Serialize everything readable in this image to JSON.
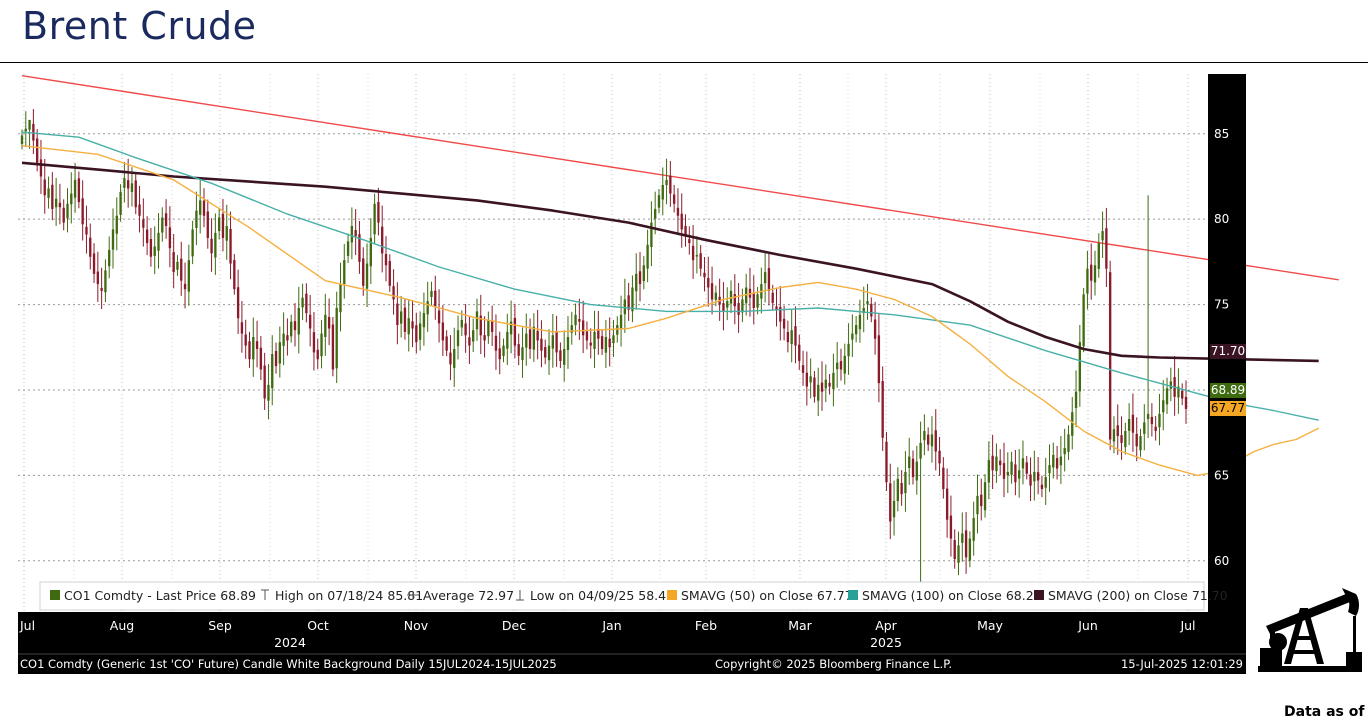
{
  "page": {
    "title": "Brent Crude",
    "data_as_of": "Data as of"
  },
  "chart_data": {
    "type": "line",
    "title": "Brent Crude",
    "ticker": "CO1 Comdty",
    "x_axis": {
      "months": [
        "Jul",
        "Aug",
        "Sep",
        "Oct",
        "Nov",
        "Dec",
        "Jan",
        "Feb",
        "Mar",
        "Apr",
        "May",
        "Jun",
        "Jul"
      ],
      "year_labels": [
        "2024",
        "2025"
      ]
    },
    "y_axis": {
      "ticks": [
        60,
        65,
        70,
        75,
        80,
        85
      ],
      "ylim": [
        57,
        88.5
      ],
      "position": "right"
    },
    "grid": true,
    "legend": {
      "position": "bottom",
      "items": [
        {
          "label": "CO1 Comdty - Last Price 68.89",
          "color": "#3f6b10",
          "symbol": "square"
        },
        {
          "label": "High on 07/18/24 85.81",
          "color": "#555555",
          "symbol": "high"
        },
        {
          "label": "Average 72.97",
          "color": "#555555",
          "symbol": "avg"
        },
        {
          "label": "Low on 04/09/25 58.40",
          "color": "#555555",
          "symbol": "low"
        },
        {
          "label": "SMAVG (50)  on Close 67.77",
          "color": "#f5a623",
          "symbol": "square"
        },
        {
          "label": "SMAVG (100)  on Close 68.23",
          "color": "#2aa198",
          "symbol": "square"
        },
        {
          "label": "SMAVG (200)  on Close 71.70",
          "color": "#3b1424",
          "symbol": "square"
        }
      ]
    },
    "price_labels": [
      {
        "text": "71.70",
        "value": 71.7,
        "bg": "#3b1424",
        "fg": "#ffffff"
      },
      {
        "text": "68.89",
        "value": 68.89,
        "bg": "#3f6b10",
        "fg": "#ffffff"
      },
      {
        "text": "67.77",
        "value": 67.77,
        "bg": "#f5a623",
        "fg": "#000000"
      }
    ],
    "footer": {
      "left": "CO1 Comdty (Generic 1st 'CO' Future) Candle White Background  Daily 15JUL2024-15JUL2025",
      "center": "Copyright© 2025 Bloomberg Finance L.P.",
      "right": "15-Jul-2025 12:01:29"
    },
    "colors": {
      "up": "#3f6b10",
      "down": "#8b1a2b",
      "trend": "#f04a4a",
      "sma50": "#f5b041",
      "sma100": "#48b0a8",
      "sma200": "#3b1424"
    },
    "candles_close": [
      84.9,
      85.3,
      85.81,
      84.6,
      83.3,
      82.5,
      81.4,
      81.8,
      80.6,
      81.2,
      80.7,
      79.8,
      80.9,
      81.5,
      82.3,
      81.0,
      79.7,
      79.1,
      77.8,
      76.8,
      76.2,
      75.8,
      77.0,
      78.2,
      79.4,
      80.2,
      81.6,
      82.4,
      81.8,
      82.1,
      80.7,
      80.2,
      79.5,
      78.6,
      77.8,
      78.4,
      79.2,
      80.1,
      79.6,
      78.3,
      76.9,
      77.5,
      76.4,
      75.9,
      77.6,
      79.4,
      80.5,
      81.1,
      80.2,
      78.9,
      78.0,
      79.2,
      80.1,
      78.9,
      79.6,
      77.4,
      75.9,
      74.2,
      73.3,
      72.6,
      71.8,
      73.1,
      72.4,
      71.2,
      69.5,
      70.3,
      72.1,
      71.4,
      72.8,
      73.3,
      72.9,
      74.0,
      73.5,
      74.8,
      75.4,
      74.5,
      73.6,
      72.2,
      71.8,
      73.3,
      74.4,
      73.6,
      71.2,
      74.8,
      76.2,
      77.6,
      78.7,
      79.6,
      79.0,
      77.5,
      76.1,
      77.4,
      78.9,
      80.9,
      79.8,
      78.0,
      77.3,
      76.1,
      75.3,
      73.8,
      74.6,
      73.4,
      74.2,
      73.6,
      72.8,
      73.9,
      74.5,
      75.2,
      75.8,
      74.9,
      73.9,
      72.9,
      72.3,
      71.5,
      72.4,
      73.5,
      74.1,
      73.2,
      72.6,
      73.5,
      74.6,
      73.2,
      72.9,
      74.1,
      73.4,
      72.3,
      71.8,
      72.6,
      73.4,
      74.0,
      72.6,
      72.0,
      72.5,
      73.3,
      72.4,
      73.7,
      72.9,
      72.3,
      71.9,
      72.6,
      73.2,
      72.2,
      71.7,
      72.4,
      73.1,
      73.8,
      74.4,
      74.0,
      73.2,
      72.9,
      72.6,
      73.4,
      73.0,
      72.4,
      73.1,
      72.5,
      73.2,
      73.8,
      74.4,
      75.3,
      74.7,
      76.0,
      76.8,
      76.2,
      77.3,
      78.5,
      79.8,
      80.6,
      81.4,
      82.0,
      82.3,
      81.5,
      80.9,
      80.2,
      79.4,
      79.0,
      78.6,
      77.6,
      77.9,
      77.1,
      76.6,
      76.0,
      75.3,
      75.7,
      75.0,
      74.6,
      75.2,
      75.8,
      74.9,
      74.4,
      75.3,
      76.0,
      75.4,
      74.8,
      75.6,
      76.2,
      76.9,
      75.8,
      75.1,
      74.7,
      74.0,
      73.6,
      72.8,
      73.5,
      72.6,
      71.7,
      71.0,
      70.2,
      70.8,
      69.6,
      70.3,
      69.9,
      70.6,
      70.2,
      71.0,
      71.6,
      71.2,
      72.0,
      72.7,
      73.3,
      73.8,
      74.4,
      74.8,
      75.2,
      74.3,
      73.0,
      70.4,
      67.2,
      64.6,
      62.3,
      63.5,
      64.8,
      63.9,
      65.2,
      66.1,
      64.9,
      65.8,
      66.9,
      67.6,
      66.8,
      67.4,
      66.4,
      65.7,
      64.2,
      62.4,
      61.3,
      60.1,
      60.9,
      61.6,
      60.2,
      61.3,
      62.5,
      63.8,
      63.2,
      64.6,
      65.9,
      65.3,
      66.1,
      65.6,
      64.8,
      65.2,
      65.8,
      64.6,
      65.3,
      66.0,
      65.1,
      64.4,
      65.2,
      64.7,
      64.2,
      64.9,
      65.6,
      66.2,
      65.4,
      66.1,
      66.6,
      67.4,
      68.7,
      69.9,
      72.8,
      75.6,
      77.1,
      76.4,
      77.3,
      78.6,
      79.3,
      77.1,
      67.1,
      67.7,
      67.3,
      66.9,
      67.6,
      68.3,
      67.5,
      66.7,
      67.3,
      68.1,
      68.6,
      68.0,
      67.6,
      68.6,
      69.4,
      70.1,
      70.5,
      69.6,
      70.2,
      69.5,
      68.89
    ],
    "sma50": [
      [
        0,
        84.3
      ],
      [
        20,
        83.8
      ],
      [
        40,
        82.3
      ],
      [
        60,
        79.5
      ],
      [
        80,
        76.4
      ],
      [
        100,
        75.4
      ],
      [
        120,
        74.2
      ],
      [
        140,
        73.4
      ],
      [
        160,
        73.6
      ],
      [
        170,
        74.2
      ],
      [
        185,
        75.3
      ],
      [
        200,
        76.0
      ],
      [
        210,
        76.3
      ],
      [
        220,
        75.9
      ],
      [
        230,
        75.3
      ],
      [
        240,
        74.3
      ],
      [
        250,
        72.7
      ],
      [
        260,
        70.8
      ],
      [
        270,
        69.3
      ],
      [
        280,
        67.6
      ],
      [
        290,
        66.4
      ],
      [
        300,
        65.6
      ],
      [
        310,
        65.0
      ],
      [
        315,
        65.2
      ],
      [
        320,
        65.8
      ],
      [
        325,
        66.4
      ],
      [
        330,
        66.8
      ],
      [
        336,
        67.1
      ],
      [
        342,
        67.77
      ]
    ],
    "sma100": [
      [
        0,
        85.1
      ],
      [
        15,
        84.8
      ],
      [
        30,
        83.6
      ],
      [
        50,
        82.1
      ],
      [
        70,
        80.3
      ],
      [
        90,
        78.8
      ],
      [
        110,
        77.2
      ],
      [
        130,
        75.9
      ],
      [
        150,
        75.0
      ],
      [
        170,
        74.6
      ],
      [
        190,
        74.6
      ],
      [
        210,
        74.8
      ],
      [
        230,
        74.4
      ],
      [
        250,
        73.8
      ],
      [
        270,
        72.3
      ],
      [
        290,
        71.0
      ],
      [
        310,
        69.8
      ],
      [
        320,
        69.2
      ],
      [
        330,
        68.8
      ],
      [
        342,
        68.23
      ]
    ],
    "sma200": [
      [
        0,
        83.3
      ],
      [
        20,
        82.9
      ],
      [
        40,
        82.5
      ],
      [
        60,
        82.2
      ],
      [
        80,
        81.9
      ],
      [
        100,
        81.5
      ],
      [
        120,
        81.1
      ],
      [
        140,
        80.5
      ],
      [
        160,
        79.8
      ],
      [
        180,
        78.8
      ],
      [
        200,
        77.9
      ],
      [
        220,
        77.1
      ],
      [
        240,
        76.2
      ],
      [
        250,
        75.2
      ],
      [
        260,
        74.0
      ],
      [
        270,
        73.1
      ],
      [
        280,
        72.4
      ],
      [
        290,
        72.0
      ],
      [
        300,
        71.9
      ],
      [
        320,
        71.8
      ],
      [
        342,
        71.7
      ]
    ],
    "trendline": [
      [
        0,
        88.4
      ],
      [
        342,
        76.5
      ]
    ]
  }
}
